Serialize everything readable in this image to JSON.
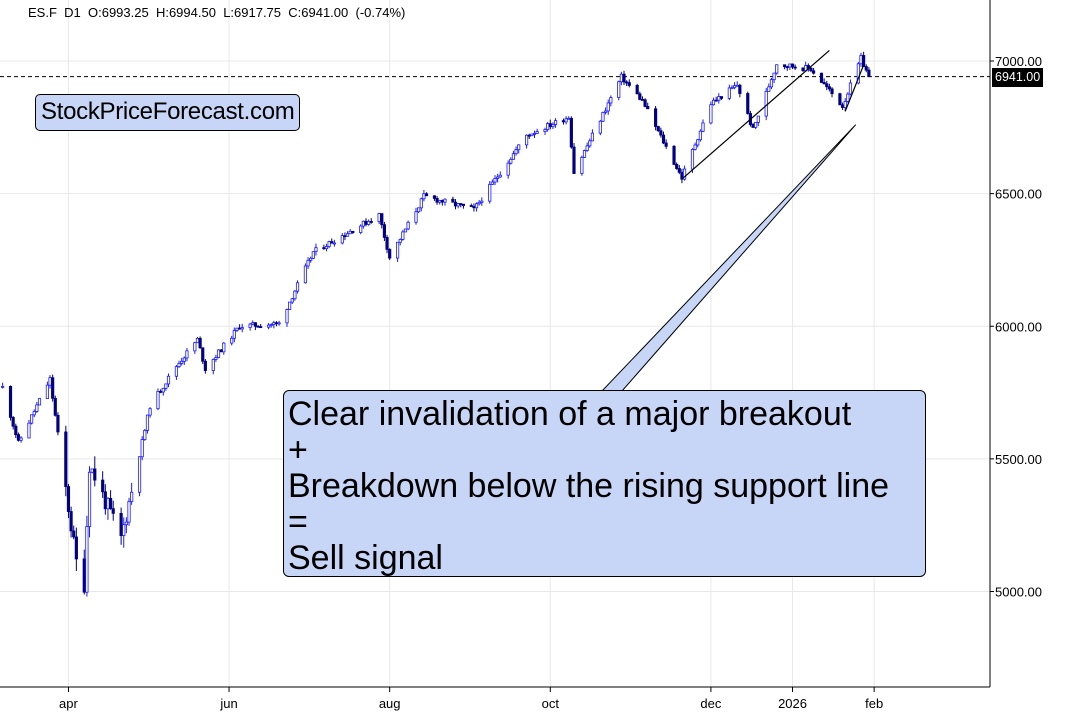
{
  "chart_data": {
    "type": "candlestick",
    "symbol": "ES.F",
    "interval": "D1",
    "header": {
      "open_label": "O:6993.25",
      "high_label": "H:6994.50",
      "low_label": "L:6917.75",
      "close_label": "C:6941.00",
      "change_label": "(-0.74%)"
    },
    "last_price_label": "6941.00",
    "last_price": 6941,
    "y_ticks": [
      {
        "value": 7000,
        "label": "7000.00"
      },
      {
        "value": 6500,
        "label": "6500.00"
      },
      {
        "value": 6000,
        "label": "6000.00"
      },
      {
        "value": 5500,
        "label": "5500.00"
      },
      {
        "value": 5000,
        "label": "5000.00"
      }
    ],
    "x_ticks": [
      {
        "date": "2025-04-01",
        "label": "apr"
      },
      {
        "date": "2025-06-01",
        "label": "jun"
      },
      {
        "date": "2025-08-01",
        "label": "aug"
      },
      {
        "date": "2025-10-01",
        "label": "oct"
      },
      {
        "date": "2025-12-01",
        "label": "dec"
      },
      {
        "date": "2026-01-01",
        "label": "2026"
      },
      {
        "date": "2026-02-01",
        "label": "feb"
      }
    ],
    "ylim": [
      4640,
      7230
    ],
    "xlim": [
      "2025-03-06",
      "2026-03-17"
    ],
    "grid": true,
    "key_points": [
      {
        "date": "2025-03-07",
        "close": 5770
      },
      {
        "date": "2025-03-13",
        "close": 5560
      },
      {
        "date": "2025-03-25",
        "close": 5800
      },
      {
        "date": "2025-04-04",
        "close": 5110
      },
      {
        "date": "2025-04-07",
        "close": 5030
      },
      {
        "date": "2025-04-09",
        "close": 5480
      },
      {
        "date": "2025-04-21",
        "close": 5200
      },
      {
        "date": "2025-05-02",
        "close": 5700
      },
      {
        "date": "2025-05-12",
        "close": 5850
      },
      {
        "date": "2025-05-20",
        "close": 5950
      },
      {
        "date": "2025-05-23",
        "close": 5840
      },
      {
        "date": "2025-06-05",
        "close": 6000
      },
      {
        "date": "2025-06-20",
        "close": 6010
      },
      {
        "date": "2025-07-03",
        "close": 6280
      },
      {
        "date": "2025-07-28",
        "close": 6420
      },
      {
        "date": "2025-08-01",
        "close": 6260
      },
      {
        "date": "2025-08-14",
        "close": 6490
      },
      {
        "date": "2025-09-02",
        "close": 6440
      },
      {
        "date": "2025-09-22",
        "close": 6720
      },
      {
        "date": "2025-10-08",
        "close": 6790
      },
      {
        "date": "2025-10-10",
        "close": 6580
      },
      {
        "date": "2025-10-28",
        "close": 6940
      },
      {
        "date": "2025-11-05",
        "close": 6850
      },
      {
        "date": "2025-11-20",
        "close": 6560
      },
      {
        "date": "2025-12-01",
        "close": 6840
      },
      {
        "date": "2025-12-11",
        "close": 6910
      },
      {
        "date": "2025-12-17",
        "close": 6740
      },
      {
        "date": "2025-12-26",
        "close": 6990
      },
      {
        "date": "2026-01-08",
        "close": 6970
      },
      {
        "date": "2026-01-20",
        "close": 6830
      },
      {
        "date": "2026-01-27",
        "close": 7010
      },
      {
        "date": "2026-01-30",
        "close": 6941
      }
    ],
    "trendlines": [
      {
        "from": {
          "date": "2025-11-20",
          "value": 6555
        },
        "to": {
          "date": "2026-01-15",
          "value": 7040
        }
      },
      {
        "from": {
          "date": "2026-01-21",
          "value": 6810
        },
        "to": {
          "date": "2026-01-28",
          "value": 6985
        }
      }
    ],
    "callout_arrow_target": {
      "date": "2026-01-25",
      "value": 6760
    }
  },
  "watermark": "StockPriceForecast.com",
  "annotation": {
    "lines": [
      "Clear invalidation of a major breakout",
      "+",
      "Breakdown below the rising support line",
      "=",
      "Sell signal"
    ]
  },
  "colors": {
    "up_candle": "#1a1aff",
    "down_candle": "#000080",
    "callout_fill": "#c7d6f7",
    "grid": "#e8e8e8"
  }
}
